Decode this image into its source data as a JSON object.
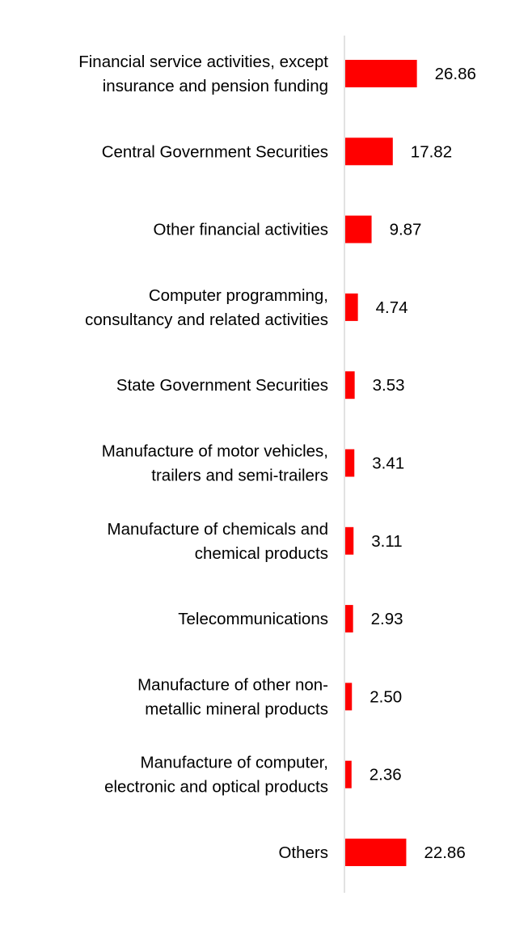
{
  "chart_data": {
    "type": "bar",
    "orientation": "horizontal",
    "categories": [
      [
        "Financial service activities, except",
        "insurance and pension funding"
      ],
      [
        "Central Government Securities"
      ],
      [
        "Other financial activities"
      ],
      [
        "Computer programming,",
        "consultancy and related activities"
      ],
      [
        "State Government Securities"
      ],
      [
        "Manufacture of motor vehicles,",
        "trailers and semi-trailers"
      ],
      [
        "Manufacture of chemicals and",
        "chemical products"
      ],
      [
        "Telecommunications"
      ],
      [
        "Manufacture of other non-",
        "metallic mineral products"
      ],
      [
        "Manufacture of computer,",
        "electronic and optical products"
      ],
      [
        "Others"
      ]
    ],
    "values": [
      26.86,
      17.82,
      9.87,
      4.74,
      3.53,
      3.41,
      3.11,
      2.93,
      2.5,
      2.36,
      22.86
    ],
    "value_labels": [
      "26.86",
      "17.82",
      "9.87",
      "4.74",
      "3.53",
      "3.41",
      "3.11",
      "2.93",
      "2.50",
      "2.36",
      "22.86"
    ],
    "bar_color": "#ff0000",
    "axis_color": "#d9d9d9",
    "grid": false,
    "legend": "none",
    "title": "",
    "xlabel": "",
    "ylabel": ""
  }
}
